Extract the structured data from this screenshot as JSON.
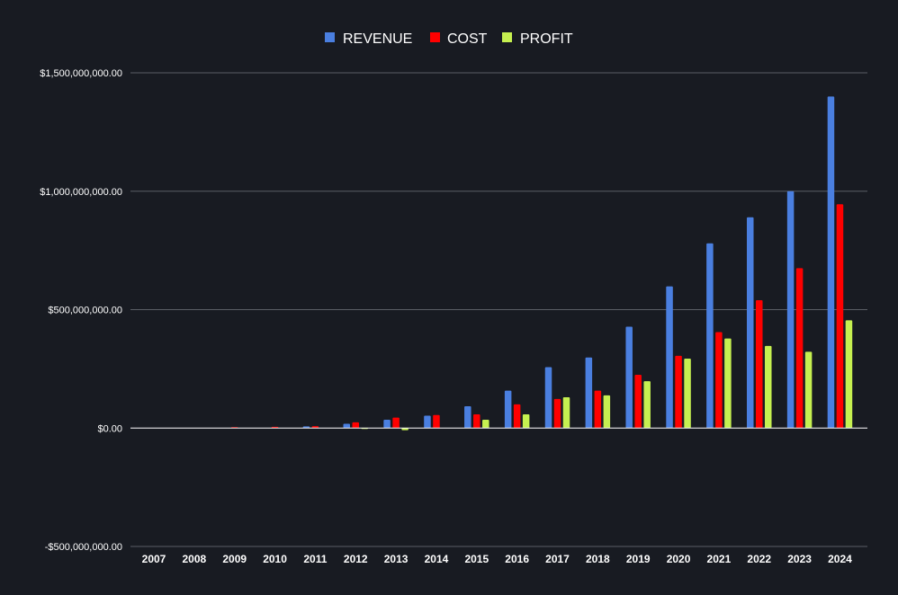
{
  "chart_data": {
    "type": "bar",
    "title": "",
    "xlabel": "",
    "ylabel": "",
    "ylim": [
      -500000000,
      1500000000
    ],
    "y_ticks": [
      {
        "value": 1500000000,
        "label": "$1,500,000,000.00"
      },
      {
        "value": 1000000000,
        "label": "$1,000,000,000.00"
      },
      {
        "value": 500000000,
        "label": "$500,000,000.00"
      },
      {
        "value": 0,
        "label": "$0.00"
      },
      {
        "value": -500000000,
        "label": "-$500,000,000.00"
      }
    ],
    "grid": true,
    "legend_position": "top-center",
    "categories": [
      "2007",
      "2008",
      "2009",
      "2010",
      "2011",
      "2012",
      "2013",
      "2014",
      "2015",
      "2016",
      "2017",
      "2018",
      "2019",
      "2020",
      "2021",
      "2022",
      "2023",
      "2024"
    ],
    "series": [
      {
        "name": "REVENUE",
        "color": "#4a7fe0",
        "values": [
          0,
          0,
          500000,
          1000000,
          7000000,
          18000000,
          35000000,
          52000000,
          92000000,
          158000000,
          257000000,
          298000000,
          428000000,
          598000000,
          780000000,
          890000000,
          1000000000,
          1400000000
        ]
      },
      {
        "name": "COST",
        "color": "#ff0000",
        "values": [
          0,
          1000000,
          4000000,
          5000000,
          8000000,
          24000000,
          44000000,
          55000000,
          58000000,
          100000000,
          123000000,
          158000000,
          225000000,
          305000000,
          405000000,
          540000000,
          675000000,
          945000000
        ]
      },
      {
        "name": "PROFIT",
        "color": "#c6f050",
        "values": [
          0,
          0,
          -500000,
          0,
          0,
          -4000000,
          -9000000,
          0,
          35000000,
          58000000,
          130000000,
          138000000,
          198000000,
          293000000,
          378000000,
          347000000,
          322000000,
          455000000
        ]
      }
    ]
  }
}
